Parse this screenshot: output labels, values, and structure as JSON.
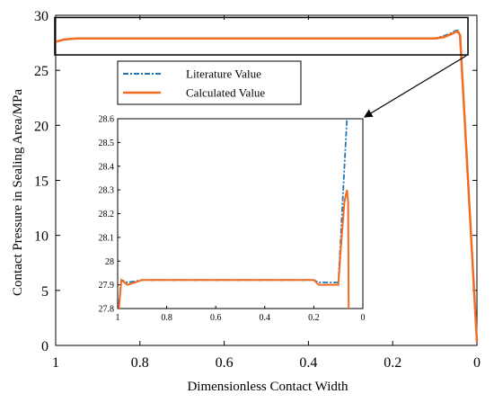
{
  "chart_data": [
    {
      "type": "line",
      "panel": "main",
      "xlabel": "Dimensionless Contact Width",
      "ylabel": "Contact Pressure in Sealing Area/MPa",
      "xlim": [
        1,
        0
      ],
      "ylim": [
        0,
        30
      ],
      "x_reversed": true,
      "xticks": [
        "1",
        "0.8",
        "0.6",
        "0.4",
        "0.2",
        "0"
      ],
      "yticks": [
        "0",
        "5",
        "10",
        "15",
        "20",
        "25",
        "30"
      ],
      "legend": {
        "position": "upper-center-left",
        "entries": [
          "Literature Value",
          "Calculated Value"
        ]
      },
      "series": [
        {
          "name": "Literature Value",
          "color": "#1f77b4",
          "style": "dash-dot",
          "x": [
            1.0,
            0.98,
            0.95,
            0.9,
            0.8,
            0.6,
            0.4,
            0.2,
            0.1,
            0.08,
            0.06,
            0.05,
            0.045,
            0.04,
            0.0
          ],
          "y": [
            27.6,
            27.8,
            27.9,
            27.9,
            27.9,
            27.9,
            27.9,
            27.9,
            27.9,
            28.1,
            28.4,
            28.6,
            28.6,
            28.2,
            0.3
          ]
        },
        {
          "name": "Calculated Value",
          "color": "#f26b21",
          "style": "solid",
          "x": [
            1.0,
            0.98,
            0.95,
            0.9,
            0.8,
            0.6,
            0.4,
            0.2,
            0.1,
            0.08,
            0.06,
            0.05,
            0.045,
            0.04,
            0.0
          ],
          "y": [
            27.6,
            27.8,
            27.9,
            27.9,
            27.9,
            27.9,
            27.9,
            27.9,
            27.9,
            28.0,
            28.3,
            28.5,
            28.5,
            28.2,
            0.3
          ]
        }
      ]
    },
    {
      "type": "line",
      "panel": "inset",
      "xlim": [
        1,
        0
      ],
      "ylim": [
        27.8,
        28.6
      ],
      "x_reversed": true,
      "xticks": [
        "1",
        "0.8",
        "0.6",
        "0.4",
        "0.2",
        "0"
      ],
      "yticks": [
        "27.8",
        "27.9",
        "28",
        "28.1",
        "28.2",
        "28.3",
        "28.4",
        "28.5",
        "28.6"
      ],
      "series": [
        {
          "name": "Literature Value",
          "color": "#1f77b4",
          "style": "dash-dot",
          "x": [
            0.995,
            0.985,
            0.96,
            0.93,
            0.9,
            0.6,
            0.4,
            0.2,
            0.18,
            0.15,
            0.12,
            0.1,
            0.09,
            0.075,
            0.065
          ],
          "y": [
            27.82,
            27.92,
            27.91,
            27.915,
            27.92,
            27.92,
            27.92,
            27.92,
            27.91,
            27.91,
            27.91,
            27.91,
            28.1,
            28.4,
            28.6
          ]
        },
        {
          "name": "Calculated Value",
          "color": "#f26b21",
          "style": "solid",
          "x": [
            0.995,
            0.985,
            0.96,
            0.93,
            0.9,
            0.6,
            0.4,
            0.2,
            0.18,
            0.15,
            0.12,
            0.1,
            0.09,
            0.075,
            0.065,
            0.06,
            0.058
          ],
          "y": [
            27.8,
            27.92,
            27.9,
            27.91,
            27.92,
            27.92,
            27.92,
            27.92,
            27.9,
            27.9,
            27.9,
            27.9,
            28.05,
            28.25,
            28.3,
            28.25,
            27.8
          ]
        }
      ]
    }
  ]
}
